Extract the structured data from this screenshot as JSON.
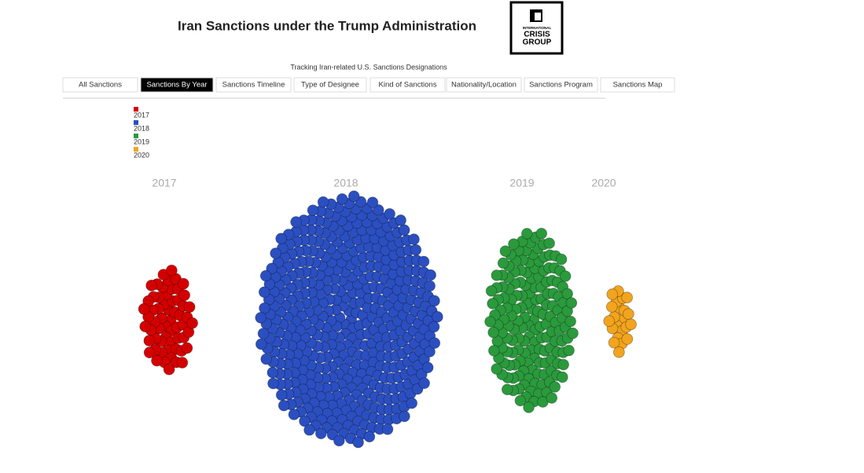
{
  "header": {
    "title": "Iran Sanctions under the Trump Administration",
    "subtitle": "Tracking Iran-related U.S. Sanctions Designations",
    "logo": [
      "INTERNATIONAL",
      "CRISIS",
      "GROUP"
    ]
  },
  "tabs": {
    "items": [
      "All Sanctions",
      "Sanctions By Year",
      "Sanctions Timeline",
      "Type of Designee",
      "Kind of Sanctions",
      "Nationality/Location",
      "Sanctions Program",
      "Sanctions Map"
    ],
    "active": 1
  },
  "clusters": [
    {
      "name": "2017",
      "color": "#d40000",
      "count": 60
    },
    {
      "name": "2018",
      "color": "#2b4fc0",
      "count": 470
    },
    {
      "name": "2019",
      "color": "#2a9a3c",
      "count": 170
    },
    {
      "name": "2020",
      "color": "#f2a41e",
      "count": 22
    }
  ]
}
